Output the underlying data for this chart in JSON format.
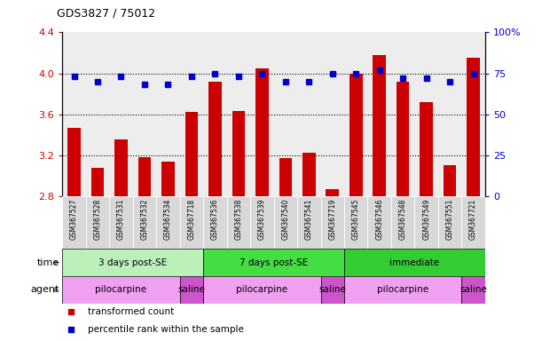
{
  "title": "GDS3827 / 75012",
  "samples": [
    "GSM367527",
    "GSM367528",
    "GSM367531",
    "GSM367532",
    "GSM367534",
    "GSM367718",
    "GSM367536",
    "GSM367538",
    "GSM367539",
    "GSM367540",
    "GSM367541",
    "GSM367719",
    "GSM367545",
    "GSM367546",
    "GSM367548",
    "GSM367549",
    "GSM367551",
    "GSM367721"
  ],
  "transformed_count": [
    3.47,
    3.08,
    3.35,
    3.18,
    3.14,
    3.62,
    3.92,
    3.63,
    4.05,
    3.17,
    3.22,
    2.87,
    4.0,
    4.18,
    3.92,
    3.72,
    3.1,
    4.15
  ],
  "percentile_rank": [
    73,
    70,
    73,
    68,
    68,
    73,
    75,
    73,
    75,
    70,
    70,
    75,
    75,
    77,
    72,
    72,
    70,
    75
  ],
  "bar_color": "#cc0000",
  "dot_color": "#0000cc",
  "ylim_left": [
    2.8,
    4.4
  ],
  "ylim_right": [
    0,
    100
  ],
  "yticks_left": [
    2.8,
    3.2,
    3.6,
    4.0,
    4.4
  ],
  "yticks_right": [
    0,
    25,
    50,
    75,
    100
  ],
  "grid_lines": [
    3.2,
    3.6,
    4.0
  ],
  "time_groups": [
    {
      "label": "3 days post-SE",
      "start": 0,
      "end": 6,
      "color": "#bbf0bb"
    },
    {
      "label": "7 days post-SE",
      "start": 6,
      "end": 12,
      "color": "#44dd44"
    },
    {
      "label": "immediate",
      "start": 12,
      "end": 18,
      "color": "#33cc33"
    }
  ],
  "agent_groups": [
    {
      "label": "pilocarpine",
      "start": 0,
      "end": 5,
      "color": "#f0a0f0"
    },
    {
      "label": "saline",
      "start": 5,
      "end": 6,
      "color": "#cc55cc"
    },
    {
      "label": "pilocarpine",
      "start": 6,
      "end": 11,
      "color": "#f0a0f0"
    },
    {
      "label": "saline",
      "start": 11,
      "end": 12,
      "color": "#cc55cc"
    },
    {
      "label": "pilocarpine",
      "start": 12,
      "end": 17,
      "color": "#f0a0f0"
    },
    {
      "label": "saline",
      "start": 17,
      "end": 18,
      "color": "#cc55cc"
    }
  ],
  "legend_items": [
    {
      "label": "transformed count",
      "color": "#cc0000"
    },
    {
      "label": "percentile rank within the sample",
      "color": "#0000cc"
    }
  ],
  "tick_label_color_left": "#cc0000",
  "tick_label_color_right": "#0000cc",
  "bar_width": 0.55,
  "col_bg": "#d8d8d8"
}
